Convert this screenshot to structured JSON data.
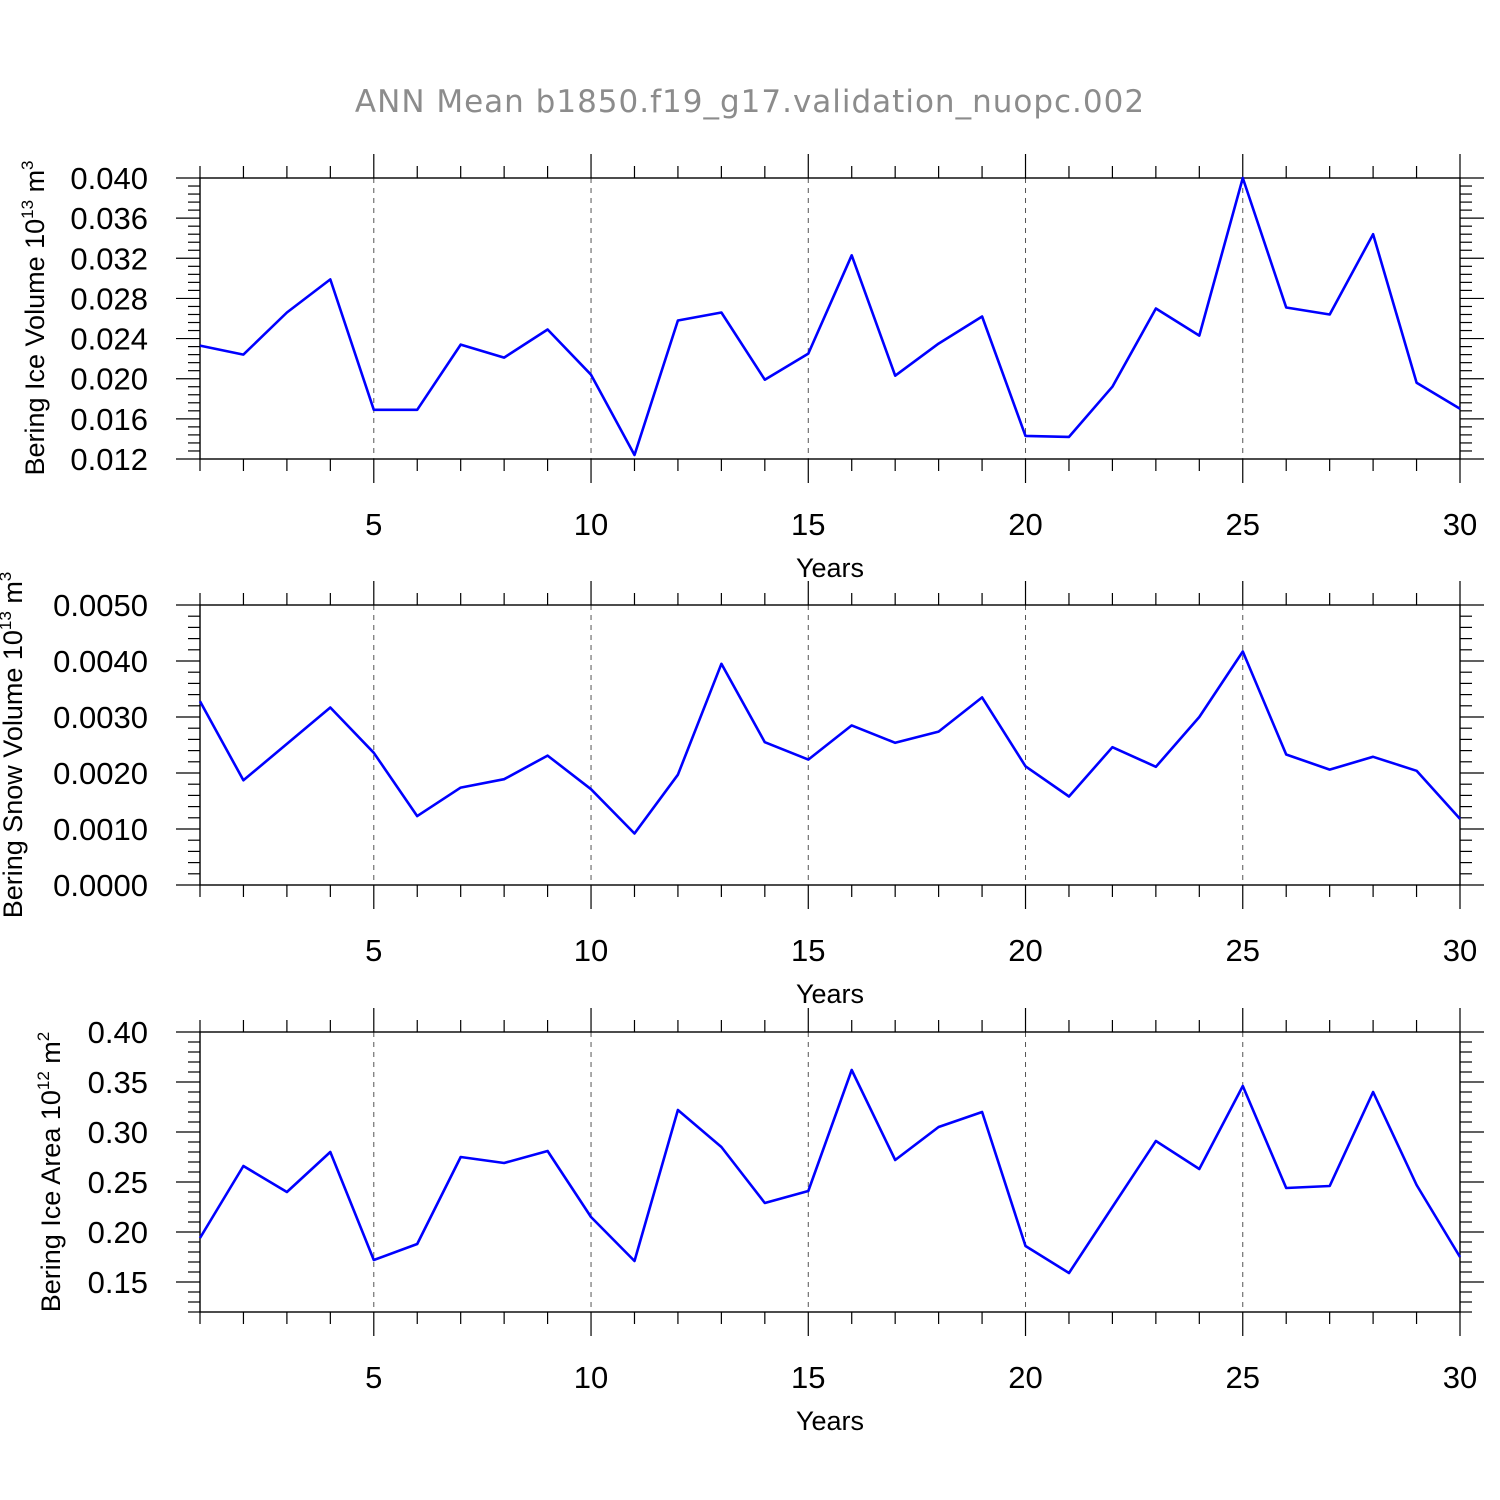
{
  "title": "ANN Mean b1850.f19_g17.validation_nuopc.002",
  "colors": {
    "line": "#0000ff",
    "axis": "#000000",
    "grid": "#555555",
    "title": "#8c8c8c"
  },
  "chart_data": [
    {
      "type": "line",
      "ylabel_main": "Bering Ice Volume 10",
      "ylabel_exp": "13",
      "ylabel_unit": " m",
      "ylabel_unit_exp": "3",
      "xlabel": "Years",
      "xlim": [
        1,
        30
      ],
      "ylim": [
        0.012,
        0.04
      ],
      "xticks": [
        "5",
        "10",
        "15",
        "20",
        "25",
        "30"
      ],
      "yticks": [
        "0.012",
        "0.016",
        "0.020",
        "0.024",
        "0.028",
        "0.032",
        "0.036",
        "0.040"
      ],
      "x": [
        1,
        2,
        3,
        4,
        5,
        6,
        7,
        8,
        9,
        10,
        11,
        12,
        13,
        14,
        15,
        16,
        17,
        18,
        19,
        20,
        21,
        22,
        23,
        24,
        25,
        26,
        27,
        28,
        29,
        30
      ],
      "values": [
        0.0233,
        0.0224,
        0.0266,
        0.0299,
        0.0169,
        0.0169,
        0.0234,
        0.0221,
        0.0249,
        0.0204,
        0.0124,
        0.0258,
        0.0266,
        0.0199,
        0.0225,
        0.0323,
        0.0203,
        0.0235,
        0.0262,
        0.0143,
        0.0142,
        0.0192,
        0.027,
        0.0243,
        0.04,
        0.0271,
        0.0264,
        0.0344,
        0.0196,
        0.017
      ]
    },
    {
      "type": "line",
      "ylabel_main": "Bering Snow Volume 10",
      "ylabel_exp": "13",
      "ylabel_unit": " m",
      "ylabel_unit_exp": "3",
      "xlabel": "Years",
      "xlim": [
        1,
        30
      ],
      "ylim": [
        0.0,
        0.005
      ],
      "xticks": [
        "5",
        "10",
        "15",
        "20",
        "25",
        "30"
      ],
      "yticks": [
        "0.0000",
        "0.0010",
        "0.0020",
        "0.0030",
        "0.0040",
        "0.0050"
      ],
      "x": [
        1,
        2,
        3,
        4,
        5,
        6,
        7,
        8,
        9,
        10,
        11,
        12,
        13,
        14,
        15,
        16,
        17,
        18,
        19,
        20,
        21,
        22,
        23,
        24,
        25,
        26,
        27,
        28,
        29,
        30
      ],
      "values": [
        0.00328,
        0.00187,
        0.00252,
        0.00317,
        0.00236,
        0.00123,
        0.00174,
        0.00189,
        0.00231,
        0.00171,
        0.00092,
        0.00197,
        0.00395,
        0.00255,
        0.00224,
        0.00285,
        0.00254,
        0.00274,
        0.00335,
        0.00212,
        0.00158,
        0.00246,
        0.00211,
        0.003,
        0.00417,
        0.00233,
        0.00206,
        0.00229,
        0.00204,
        0.00118
      ]
    },
    {
      "type": "line",
      "ylabel_main": "Bering Ice Area 10",
      "ylabel_exp": "12",
      "ylabel_unit": " m",
      "ylabel_unit_exp": "2",
      "xlabel": "Years",
      "xlim": [
        1,
        30
      ],
      "ylim": [
        0.12,
        0.4
      ],
      "xticks": [
        "5",
        "10",
        "15",
        "20",
        "25",
        "30"
      ],
      "yticks": [
        "0.15",
        "0.20",
        "0.25",
        "0.30",
        "0.35",
        "0.40"
      ],
      "x": [
        1,
        2,
        3,
        4,
        5,
        6,
        7,
        8,
        9,
        10,
        11,
        12,
        13,
        14,
        15,
        16,
        17,
        18,
        19,
        20,
        21,
        22,
        23,
        24,
        25,
        26,
        27,
        28,
        29,
        30
      ],
      "values": [
        0.194,
        0.266,
        0.24,
        0.28,
        0.172,
        0.188,
        0.275,
        0.269,
        0.281,
        0.215,
        0.171,
        0.322,
        0.285,
        0.229,
        0.241,
        0.362,
        0.272,
        0.305,
        0.32,
        0.186,
        0.159,
        0.225,
        0.291,
        0.263,
        0.346,
        0.244,
        0.246,
        0.34,
        0.247,
        0.175
      ]
    }
  ]
}
